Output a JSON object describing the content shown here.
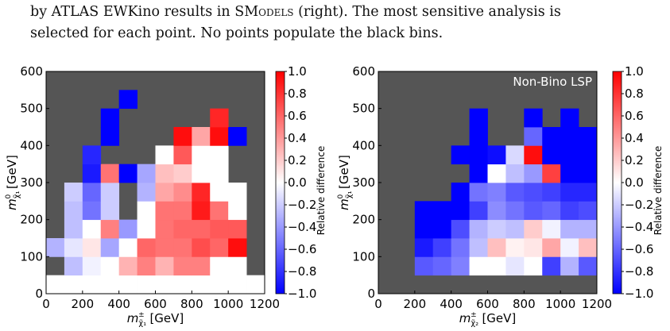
{
  "caption": {
    "line1_prefix": "by ATLAS EWKino results in S",
    "line1_sc": "Models",
    "line1_suffix": " (right). The most sensitive analysis is",
    "line2": "selected for each point. No points populate the black bins."
  },
  "colors": {
    "background_bin": "#555555",
    "neg": "#0000ff",
    "zero": "#ffffff",
    "pos": "#ff0000"
  },
  "chart_data": [
    {
      "type": "heatmap",
      "id": "left",
      "annotation": "",
      "xlabel": "m_{χ̃₁^±} [GeV]",
      "xlabel_main": "m",
      "xlabel_sub": "χ̃₁",
      "xlabel_sup": "±",
      "xlabel_unit": " [GeV]",
      "ylabel_main": "m",
      "ylabel_sub": "χ̃₁",
      "ylabel_sup": "0",
      "ylabel_unit": " [GeV]",
      "xlim": [
        0,
        1200
      ],
      "ylim": [
        0,
        600
      ],
      "xticks": [
        "0",
        "200",
        "400",
        "600",
        "800",
        "1000",
        "1200"
      ],
      "yticks": [
        "0",
        "100",
        "200",
        "300",
        "400",
        "500",
        "600"
      ],
      "bin_width": 100,
      "bin_height": 50,
      "cells": [
        [
          0,
          0,
          0,
          0,
          0,
          0,
          0,
          0,
          0,
          0,
          0,
          0
        ],
        [
          null,
          -0.25,
          -0.05,
          0,
          0.3,
          0.5,
          0.3,
          0.5,
          0.5,
          0,
          0,
          null
        ],
        [
          -0.3,
          -0.1,
          0.1,
          -0.35,
          0,
          0.6,
          0.55,
          0.55,
          0.7,
          0.6,
          0.95,
          null
        ],
        [
          null,
          -0.25,
          0,
          0.5,
          -0.4,
          0,
          0.55,
          0.6,
          0.6,
          0.65,
          0.65,
          null
        ],
        [
          null,
          -0.25,
          -0.55,
          -0.2,
          null,
          0,
          0.55,
          0.55,
          0.9,
          0.55,
          0,
          null
        ],
        [
          null,
          -0.2,
          -0.6,
          -0.2,
          null,
          -0.3,
          0.35,
          0.45,
          0.85,
          0,
          0,
          null
        ],
        [
          null,
          null,
          -0.9,
          0.55,
          -1.0,
          -0.35,
          0.25,
          0.2,
          0,
          0,
          null,
          null
        ],
        [
          null,
          null,
          -0.85,
          null,
          null,
          null,
          0,
          0.65,
          0,
          0,
          null,
          null
        ],
        [
          null,
          null,
          null,
          -1.0,
          null,
          null,
          null,
          0.95,
          0.35,
          0.95,
          -1.0,
          null
        ],
        [
          null,
          null,
          null,
          -1.0,
          null,
          null,
          null,
          null,
          null,
          0.85,
          null,
          null
        ],
        [
          null,
          null,
          null,
          null,
          -1.0,
          null,
          null,
          null,
          null,
          null,
          null,
          null
        ],
        [
          null,
          null,
          null,
          null,
          null,
          null,
          null,
          null,
          null,
          null,
          null,
          null
        ]
      ],
      "colorbar": {
        "label": "Relative difference",
        "range": [
          -1.0,
          1.0
        ],
        "ticks": [
          "1.0",
          "0.8",
          "0.6",
          "0.4",
          "0.2",
          "0.0",
          "−0.2",
          "−0.4",
          "−0.6",
          "−0.8",
          "−1.0"
        ]
      }
    },
    {
      "type": "heatmap",
      "id": "right",
      "annotation": "Non-Bino LSP",
      "xlabel": "m_{χ̃₂^±} [GeV]",
      "xlabel_main": "m",
      "xlabel_sub": "χ̃₂",
      "xlabel_sup": "±",
      "xlabel_unit": " [GeV]",
      "ylabel_main": "m",
      "ylabel_sub": "χ̃₁",
      "ylabel_sup": "0",
      "ylabel_unit": " [GeV]",
      "xlim": [
        0,
        1200
      ],
      "ylim": [
        0,
        600
      ],
      "xticks": [
        "0",
        "200",
        "400",
        "600",
        "800",
        "1000",
        "1200"
      ],
      "yticks": [
        "0",
        "100",
        "200",
        "300",
        "400",
        "500",
        "600"
      ],
      "bin_width": 100,
      "bin_height": 50,
      "cells": [
        [
          null,
          null,
          null,
          null,
          null,
          null,
          null,
          null,
          null,
          null,
          null,
          null
        ],
        [
          null,
          null,
          -0.65,
          -0.6,
          -0.5,
          0,
          0,
          -0.1,
          0,
          -0.75,
          -0.3,
          -0.65
        ],
        [
          null,
          null,
          -0.9,
          -0.75,
          -0.55,
          -0.25,
          0.25,
          0.05,
          0.1,
          0.35,
          -0.05,
          0.25
        ],
        [
          null,
          null,
          -1.0,
          -1.0,
          -0.7,
          -0.3,
          -0.2,
          -0.25,
          0.2,
          -0.05,
          -0.3,
          -0.3
        ],
        [
          null,
          null,
          -1.0,
          -1.0,
          -1.0,
          -0.75,
          -0.45,
          -0.55,
          -0.65,
          -0.6,
          -0.75,
          -0.7
        ],
        [
          null,
          null,
          null,
          null,
          -1.0,
          -0.55,
          -0.5,
          -0.65,
          -0.7,
          -0.75,
          -0.85,
          -0.85
        ],
        [
          null,
          null,
          null,
          null,
          null,
          -1.0,
          0,
          -0.25,
          -0.4,
          0.75,
          -1.0,
          -1.0
        ],
        [
          null,
          null,
          null,
          null,
          -1.0,
          -1.0,
          -0.95,
          -0.15,
          0.95,
          -1.0,
          -1.0,
          -1.0
        ],
        [
          null,
          null,
          null,
          null,
          null,
          -1.0,
          null,
          null,
          -0.6,
          -1.0,
          -1.0,
          -1.0
        ],
        [
          null,
          null,
          null,
          null,
          null,
          -1.0,
          null,
          null,
          -1.0,
          null,
          -1.0,
          null
        ],
        [
          null,
          null,
          null,
          null,
          null,
          null,
          null,
          null,
          null,
          null,
          null,
          null
        ],
        [
          null,
          null,
          null,
          null,
          null,
          null,
          null,
          null,
          null,
          null,
          null,
          null
        ]
      ],
      "colorbar": {
        "label": "Relative difference",
        "range": [
          -1.0,
          1.0
        ],
        "ticks": [
          "1.0",
          "0.8",
          "0.6",
          "0.4",
          "0.2",
          "0.0",
          "−0.2",
          "−0.4",
          "−0.6",
          "−0.8",
          "−1.0"
        ]
      }
    }
  ]
}
